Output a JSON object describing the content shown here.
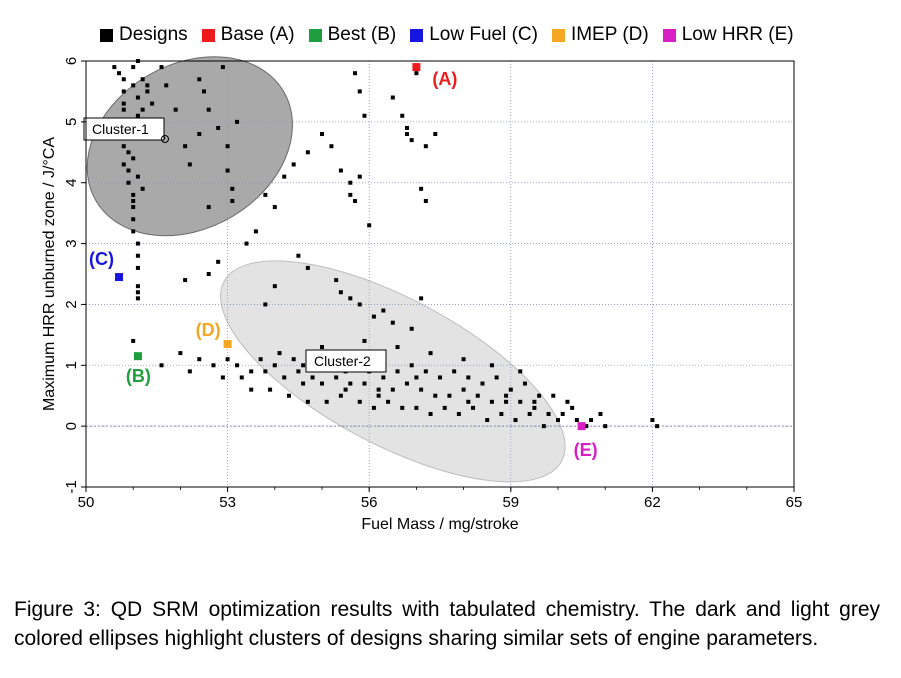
{
  "legend": [
    {
      "label": "Designs",
      "color": "#000000"
    },
    {
      "label": "Base (A)",
      "color": "#ee1c1c"
    },
    {
      "label": "Best (B)",
      "color": "#1e9e3e"
    },
    {
      "label": "Low Fuel (C)",
      "color": "#1616e0"
    },
    {
      "label": "IMEP (D)",
      "color": "#f5a623"
    },
    {
      "label": "Low HRR (E)",
      "color": "#d81ec4"
    }
  ],
  "chart_data": {
    "type": "scatter",
    "xlabel": "Fuel Mass / mg/stroke",
    "ylabel": "Maximum HRR unburned zone / J/°CA",
    "xlim": [
      50,
      65
    ],
    "ylim": [
      -1,
      6
    ],
    "xticks": [
      50,
      53,
      56,
      59,
      62,
      65
    ],
    "yticks": [
      -1,
      0,
      1,
      2,
      3,
      4,
      5,
      6
    ],
    "grid": true,
    "legend_position": "top",
    "series": [
      {
        "name": "Designs",
        "color": "#000000",
        "points": [
          [
            50.6,
            5.9
          ],
          [
            50.7,
            5.8
          ],
          [
            50.8,
            5.7
          ],
          [
            50.8,
            5.5
          ],
          [
            50.8,
            5.3
          ],
          [
            50.8,
            5.2
          ],
          [
            50.9,
            5.0
          ],
          [
            50.9,
            4.8
          ],
          [
            50.8,
            4.6
          ],
          [
            50.9,
            4.5
          ],
          [
            50.8,
            4.3
          ],
          [
            50.9,
            4.2
          ],
          [
            50.9,
            4.0
          ],
          [
            51.0,
            3.8
          ],
          [
            51.0,
            3.6
          ],
          [
            51.0,
            3.4
          ],
          [
            51.0,
            3.2
          ],
          [
            51.1,
            3.0
          ],
          [
            51.1,
            2.8
          ],
          [
            51.1,
            2.6
          ],
          [
            51.1,
            2.3
          ],
          [
            51.1,
            2.2
          ],
          [
            51.1,
            2.1
          ],
          [
            51.0,
            4.8
          ],
          [
            51.0,
            5.6
          ],
          [
            51.1,
            5.4
          ],
          [
            51.2,
            5.2
          ],
          [
            51.0,
            5.9
          ],
          [
            51.1,
            6.0
          ],
          [
            51.2,
            5.7
          ],
          [
            51.3,
            5.5
          ],
          [
            51.0,
            4.4
          ],
          [
            51.1,
            4.1
          ],
          [
            51.2,
            3.9
          ],
          [
            51.0,
            3.7
          ],
          [
            50.9,
            4.9
          ],
          [
            51.1,
            5.1
          ],
          [
            51.3,
            5.6
          ],
          [
            51.4,
            5.3
          ],
          [
            51.6,
            5.9
          ],
          [
            51.7,
            5.6
          ],
          [
            51.9,
            5.2
          ],
          [
            52.1,
            4.6
          ],
          [
            52.4,
            4.8
          ],
          [
            52.5,
            5.5
          ],
          [
            52.6,
            5.2
          ],
          [
            52.8,
            4.9
          ],
          [
            53.0,
            4.6
          ],
          [
            53.0,
            4.2
          ],
          [
            53.1,
            3.9
          ],
          [
            53.1,
            3.7
          ],
          [
            53.2,
            5.0
          ],
          [
            52.9,
            5.9
          ],
          [
            52.4,
            5.7
          ],
          [
            52.2,
            4.3
          ],
          [
            52.6,
            3.6
          ],
          [
            52.1,
            2.4
          ],
          [
            52.6,
            2.5
          ],
          [
            52.8,
            2.7
          ],
          [
            53.4,
            3.0
          ],
          [
            53.6,
            3.2
          ],
          [
            53.8,
            3.8
          ],
          [
            54.0,
            3.6
          ],
          [
            54.2,
            4.1
          ],
          [
            54.4,
            4.3
          ],
          [
            54.7,
            4.5
          ],
          [
            55.0,
            4.8
          ],
          [
            55.2,
            4.6
          ],
          [
            55.4,
            4.2
          ],
          [
            55.6,
            4.0
          ],
          [
            55.8,
            4.1
          ],
          [
            55.6,
            3.8
          ],
          [
            55.7,
            3.7
          ],
          [
            56.0,
            3.3
          ],
          [
            55.9,
            5.1
          ],
          [
            55.8,
            5.5
          ],
          [
            55.7,
            5.8
          ],
          [
            56.5,
            5.4
          ],
          [
            56.7,
            5.1
          ],
          [
            56.8,
            4.9
          ],
          [
            56.8,
            4.8
          ],
          [
            56.9,
            4.7
          ],
          [
            57.0,
            5.8
          ],
          [
            57.2,
            4.6
          ],
          [
            57.4,
            4.8
          ],
          [
            57.1,
            3.9
          ],
          [
            57.2,
            3.7
          ],
          [
            54.5,
            2.8
          ],
          [
            54.7,
            2.6
          ],
          [
            55.3,
            2.4
          ],
          [
            55.4,
            2.2
          ],
          [
            55.6,
            2.1
          ],
          [
            55.8,
            2.0
          ],
          [
            56.1,
            1.8
          ],
          [
            56.3,
            1.9
          ],
          [
            56.5,
            1.7
          ],
          [
            56.9,
            1.6
          ],
          [
            57.1,
            2.1
          ],
          [
            54.0,
            2.3
          ],
          [
            53.8,
            2.0
          ],
          [
            52.0,
            1.2
          ],
          [
            52.4,
            1.1
          ],
          [
            52.7,
            1.0
          ],
          [
            53.0,
            1.1
          ],
          [
            53.2,
            1.0
          ],
          [
            53.5,
            0.9
          ],
          [
            53.8,
            0.9
          ],
          [
            54.0,
            1.0
          ],
          [
            54.2,
            0.8
          ],
          [
            54.5,
            0.9
          ],
          [
            54.8,
            0.8
          ],
          [
            55.0,
            0.7
          ],
          [
            55.3,
            0.8
          ],
          [
            55.6,
            0.7
          ],
          [
            55.9,
            0.7
          ],
          [
            56.2,
            0.6
          ],
          [
            56.5,
            0.6
          ],
          [
            56.8,
            0.7
          ],
          [
            57.1,
            0.6
          ],
          [
            57.4,
            0.5
          ],
          [
            57.7,
            0.5
          ],
          [
            58.0,
            0.6
          ],
          [
            58.3,
            0.5
          ],
          [
            58.6,
            0.4
          ],
          [
            58.9,
            0.4
          ],
          [
            59.2,
            0.4
          ],
          [
            59.5,
            0.3
          ],
          [
            59.8,
            0.2
          ],
          [
            60.1,
            0.2
          ],
          [
            60.4,
            0.1
          ],
          [
            60.7,
            0.1
          ],
          [
            60.9,
            0.2
          ],
          [
            61.0,
            0.0
          ],
          [
            62.0,
            0.1
          ],
          [
            62.1,
            0.0
          ],
          [
            53.7,
            1.1
          ],
          [
            54.1,
            1.2
          ],
          [
            54.4,
            1.1
          ],
          [
            54.6,
            1.0
          ],
          [
            54.9,
            1.2
          ],
          [
            55.2,
            1.1
          ],
          [
            55.5,
            0.9
          ],
          [
            55.7,
            1.1
          ],
          [
            56.0,
            0.9
          ],
          [
            56.3,
            0.8
          ],
          [
            56.6,
            0.9
          ],
          [
            56.9,
            1.0
          ],
          [
            57.2,
            0.9
          ],
          [
            57.5,
            0.8
          ],
          [
            57.8,
            0.9
          ],
          [
            58.1,
            0.8
          ],
          [
            58.4,
            0.7
          ],
          [
            58.7,
            0.8
          ],
          [
            59.0,
            0.6
          ],
          [
            59.3,
            0.7
          ],
          [
            59.6,
            0.5
          ],
          [
            59.9,
            0.5
          ],
          [
            60.2,
            0.4
          ],
          [
            53.3,
            0.8
          ],
          [
            53.9,
            0.6
          ],
          [
            54.3,
            0.5
          ],
          [
            54.7,
            0.4
          ],
          [
            55.1,
            0.4
          ],
          [
            55.4,
            0.5
          ],
          [
            55.8,
            0.4
          ],
          [
            56.1,
            0.3
          ],
          [
            56.4,
            0.4
          ],
          [
            56.7,
            0.3
          ],
          [
            57.0,
            0.3
          ],
          [
            57.3,
            0.2
          ],
          [
            57.6,
            0.3
          ],
          [
            57.9,
            0.2
          ],
          [
            58.2,
            0.3
          ],
          [
            58.5,
            0.1
          ],
          [
            58.8,
            0.2
          ],
          [
            59.1,
            0.1
          ],
          [
            59.4,
            0.2
          ],
          [
            59.7,
            0.0
          ],
          [
            60.0,
            0.1
          ],
          [
            55.0,
            1.3
          ],
          [
            55.9,
            1.4
          ],
          [
            56.6,
            1.3
          ],
          [
            57.3,
            1.2
          ],
          [
            58.0,
            1.1
          ],
          [
            58.6,
            1.0
          ],
          [
            59.2,
            0.9
          ],
          [
            51.0,
            1.4
          ],
          [
            51.6,
            1.0
          ],
          [
            52.2,
            0.9
          ],
          [
            52.9,
            0.8
          ],
          [
            53.5,
            0.6
          ],
          [
            58.1,
            0.4
          ],
          [
            58.9,
            0.5
          ],
          [
            59.5,
            0.4
          ],
          [
            60.3,
            0.3
          ],
          [
            60.6,
            0.0
          ],
          [
            57.0,
            0.8
          ],
          [
            56.2,
            0.5
          ],
          [
            55.5,
            0.6
          ],
          [
            54.6,
            0.7
          ]
        ]
      },
      {
        "name": "Base (A)",
        "color": "#ee1c1c",
        "points": [
          [
            57.0,
            5.9
          ]
        ],
        "label": "(A)"
      },
      {
        "name": "Best (B)",
        "color": "#1e9e3e",
        "points": [
          [
            51.1,
            1.15
          ]
        ],
        "label": "(B)"
      },
      {
        "name": "Low Fuel (C)",
        "color": "#1616e0",
        "points": [
          [
            50.7,
            2.45
          ]
        ],
        "label": "(C)"
      },
      {
        "name": "IMEP (D)",
        "color": "#f5a623",
        "points": [
          [
            53.0,
            1.35
          ]
        ],
        "label": "(D)"
      },
      {
        "name": "Low HRR (E)",
        "color": "#d81ec4",
        "points": [
          [
            60.5,
            0.0
          ]
        ],
        "label": "(E)"
      }
    ],
    "clusters": [
      {
        "label": "Cluster-1",
        "shade": "dark",
        "center": [
          52.2,
          4.6
        ],
        "rx": 4.6,
        "ry": 1.35,
        "angle_deg": -30
      },
      {
        "label": "Cluster-2",
        "shade": "light",
        "center": [
          56.5,
          0.9
        ],
        "rx": 8.1,
        "ry": 1.2,
        "angle_deg": 28
      }
    ]
  },
  "caption": "Figure 3: QD SRM optimization results with tabulated chemistry. The dark and light grey colored ellipses highlight clusters of designs sharing similar sets of engine parameters."
}
